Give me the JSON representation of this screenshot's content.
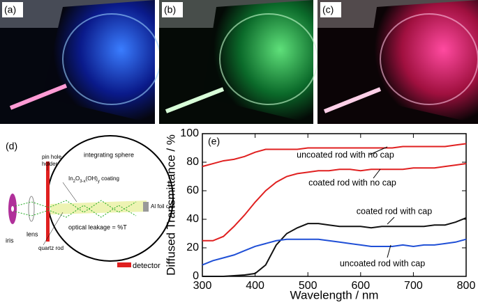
{
  "panel_labels": [
    "(a)",
    "(b)",
    "(c)",
    "(d)"
  ],
  "diagram": {
    "pin_hole": [
      "pin hole",
      "holder"
    ],
    "sphere": "integrating sphere",
    "coating": [
      "In",
      "2",
      "O",
      "3-x",
      "(OH)",
      "y",
      " coating"
    ],
    "cap": "Al foil cap",
    "leakage": "optical leakage = %T",
    "lens": "lens",
    "iris": "iris",
    "rod": "quartz rod",
    "detector": "detector"
  },
  "chart_data": {
    "type": "line",
    "panel_label": "(e)",
    "x_label": "Wavelength / nm",
    "y_label": "Diffused Transmittance / %",
    "x": [
      300,
      320,
      340,
      360,
      380,
      400,
      420,
      440,
      460,
      480,
      500,
      520,
      540,
      560,
      580,
      600,
      620,
      640,
      660,
      680,
      700,
      720,
      740,
      760,
      780,
      800
    ],
    "xlim": [
      300,
      800
    ],
    "xticks": [
      300,
      400,
      500,
      600,
      700,
      800
    ],
    "ylim": [
      0,
      100
    ],
    "yticks": [
      0,
      20,
      40,
      60,
      80,
      100
    ],
    "series": [
      {
        "name": "uncoated rod with no cap",
        "color": "#e02020",
        "values": [
          77,
          79,
          81,
          82,
          84,
          87,
          89,
          89,
          89,
          89,
          90,
          90,
          90,
          90,
          90,
          90,
          90,
          90,
          90,
          91,
          91,
          91,
          91,
          91,
          92,
          93
        ]
      },
      {
        "name": "coated rod with no cap",
        "color": "#e02020",
        "values": [
          25,
          25,
          28,
          35,
          43,
          52,
          60,
          66,
          70,
          72,
          73,
          74,
          74,
          75,
          75,
          74,
          75,
          75,
          75,
          75,
          76,
          76,
          76,
          77,
          78,
          79
        ]
      },
      {
        "name": "coated rod with cap",
        "color": "#111111",
        "values": [
          0,
          0,
          0,
          0.5,
          1,
          2,
          8,
          22,
          30,
          34,
          37,
          37,
          36,
          35,
          35,
          35,
          34,
          35,
          35,
          35,
          35,
          35,
          36,
          36,
          38,
          41
        ]
      },
      {
        "name": "uncoated rod with cap",
        "color": "#1f4fd6",
        "values": [
          8,
          11,
          13,
          15,
          18,
          21,
          23,
          25,
          26,
          26,
          26,
          26,
          25,
          24,
          23,
          22,
          21,
          21,
          21,
          22,
          21,
          22,
          22,
          23,
          24,
          26
        ]
      }
    ]
  }
}
